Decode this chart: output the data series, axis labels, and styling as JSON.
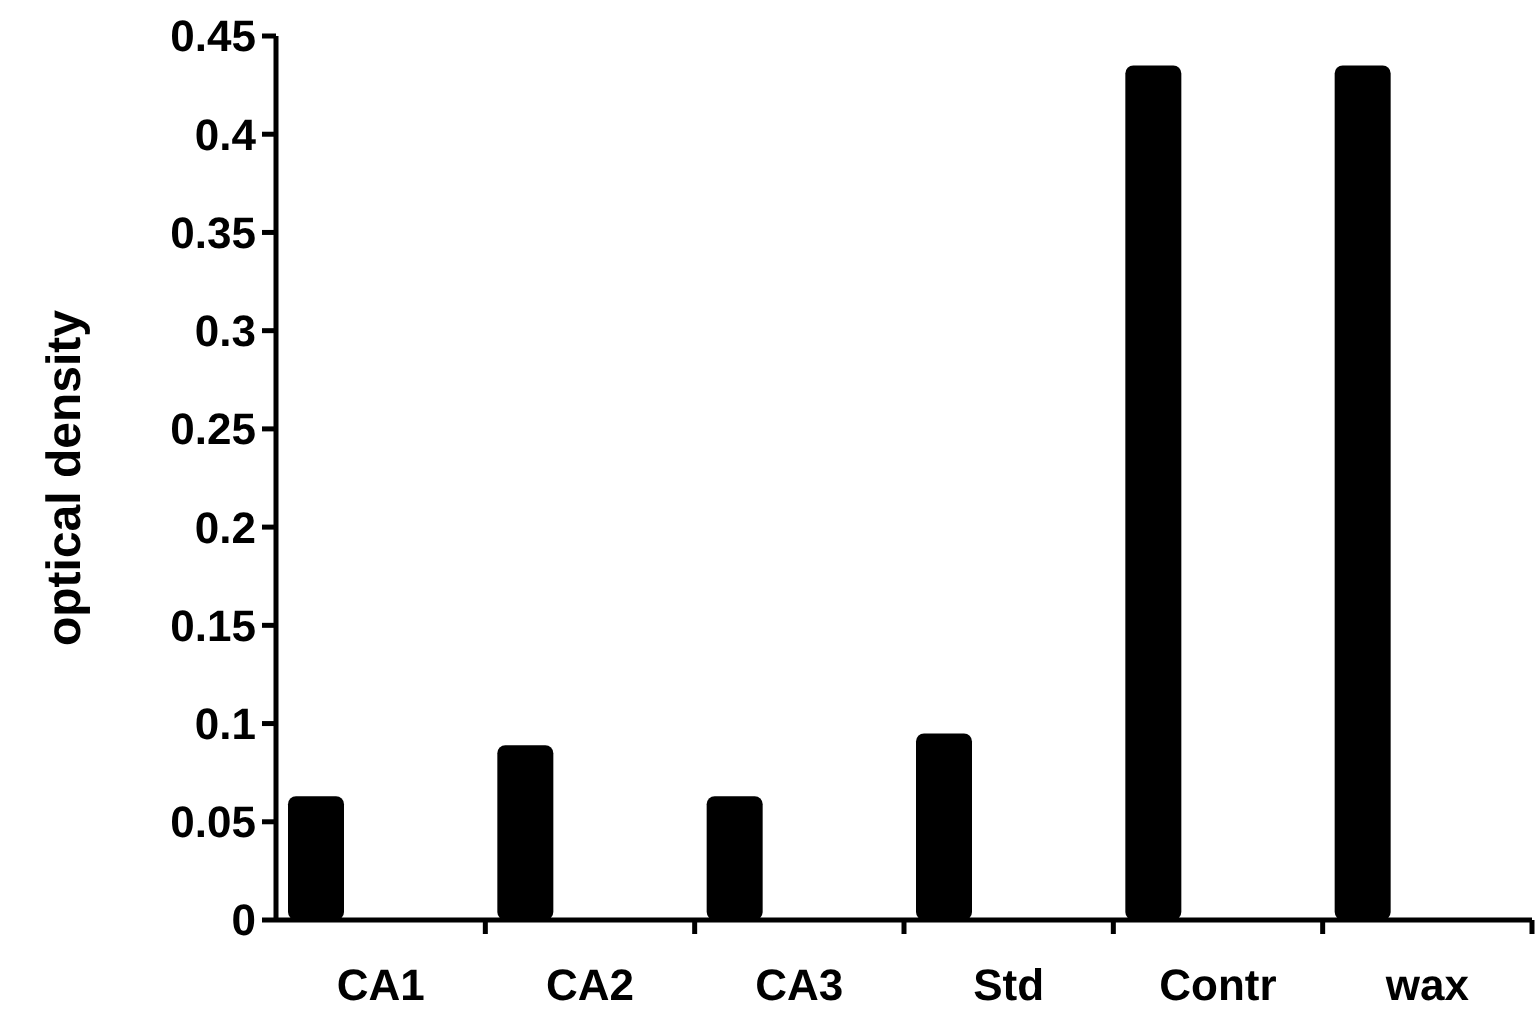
{
  "chart_data": {
    "type": "bar",
    "ylabel": "optical density",
    "categories": [
      "CA1",
      "CA2",
      "CA3",
      "Std",
      "Contr",
      "wax"
    ],
    "values": [
      0.063,
      0.089,
      0.063,
      0.095,
      0.435,
      0.435
    ],
    "color": "#000000",
    "ylim": [
      0,
      0.45
    ],
    "yticks": [
      0,
      0.05,
      0.1,
      0.15,
      0.2,
      0.25,
      0.3,
      0.35,
      0.4,
      0.45
    ]
  }
}
